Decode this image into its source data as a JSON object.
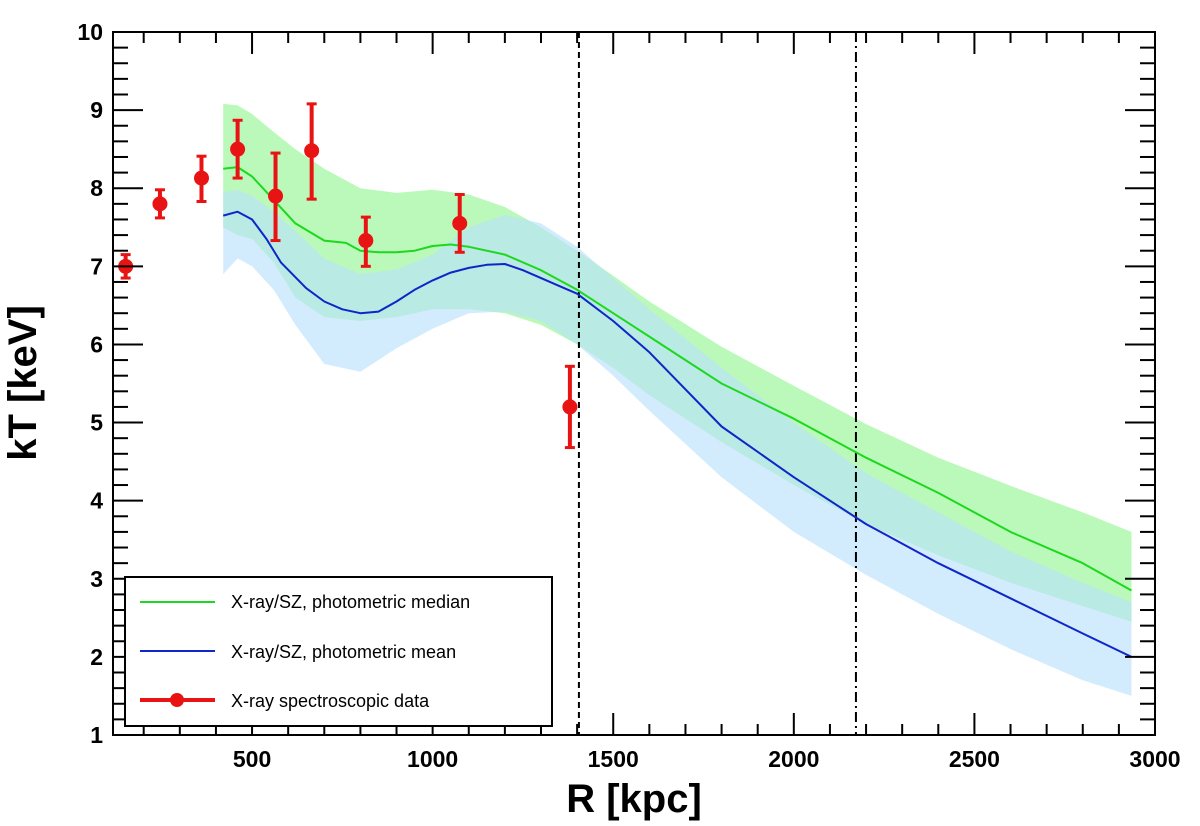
{
  "chart_data": {
    "type": "line",
    "title": "",
    "xlabel": "R [kpc]",
    "ylabel": "kT [keV]",
    "xlim": [
      115,
      3000
    ],
    "ylim": [
      1,
      10
    ],
    "x_ticks": [
      500,
      1000,
      1500,
      2000,
      2500,
      3000
    ],
    "y_ticks": [
      1,
      2,
      3,
      4,
      5,
      6,
      7,
      8,
      9,
      10
    ],
    "x_tick_labels": [
      "500",
      "1000",
      "1500",
      "2000",
      "2500",
      "3000"
    ],
    "y_tick_labels": [
      "1",
      "2",
      "3",
      "4",
      "5",
      "6",
      "7",
      "8",
      "9",
      "10"
    ],
    "vlines": [
      {
        "x": 1405,
        "style": "dashed"
      },
      {
        "x": 2172,
        "style": "dashdot"
      }
    ],
    "bands": [
      {
        "name": "median band",
        "color": "#bbf9bb",
        "x": [
          420,
          460,
          500,
          560,
          620,
          700,
          800,
          900,
          1000,
          1100,
          1200,
          1300,
          1400,
          1500,
          1600,
          1800,
          2000,
          2200,
          2400,
          2600,
          2800,
          2935
        ],
        "upper": [
          9.08,
          9.06,
          8.95,
          8.72,
          8.5,
          8.25,
          8.0,
          7.94,
          7.98,
          7.92,
          7.76,
          7.5,
          7.2,
          6.88,
          6.55,
          5.97,
          5.47,
          4.98,
          4.55,
          4.19,
          3.85,
          3.6
        ],
        "lower": [
          7.5,
          7.4,
          7.35,
          7.05,
          6.6,
          6.35,
          6.3,
          6.35,
          6.45,
          6.45,
          6.4,
          6.25,
          6.0,
          5.7,
          5.35,
          4.75,
          4.2,
          3.7,
          3.3,
          2.95,
          2.65,
          2.45
        ]
      },
      {
        "name": "mean band",
        "color": "#b8e0fb",
        "x": [
          420,
          460,
          500,
          560,
          620,
          700,
          800,
          900,
          1000,
          1100,
          1200,
          1300,
          1400,
          1500,
          1600,
          1800,
          2000,
          2200,
          2400,
          2600,
          2800,
          2935
        ],
        "upper": [
          7.95,
          7.98,
          7.9,
          7.7,
          7.45,
          7.1,
          6.9,
          6.96,
          7.15,
          7.5,
          7.66,
          7.55,
          7.25,
          6.85,
          6.45,
          5.7,
          5.0,
          4.35,
          3.85,
          3.35,
          2.95,
          2.7
        ],
        "lower": [
          6.9,
          7.1,
          7.0,
          6.7,
          6.25,
          5.75,
          5.65,
          5.95,
          6.2,
          6.4,
          6.42,
          6.3,
          6.0,
          5.6,
          5.15,
          4.3,
          3.6,
          3.05,
          2.55,
          2.1,
          1.7,
          1.5
        ]
      }
    ],
    "series": [
      {
        "name": "X-ray/SZ, photometric median",
        "color": "#1ed81e",
        "x": [
          420,
          460,
          500,
          560,
          620,
          700,
          760,
          800,
          850,
          900,
          950,
          1000,
          1050,
          1100,
          1200,
          1300,
          1400,
          1500,
          1600,
          1700,
          1800,
          2000,
          2200,
          2400,
          2600,
          2800,
          2935
        ],
        "y": [
          8.25,
          8.27,
          8.15,
          7.85,
          7.55,
          7.33,
          7.3,
          7.2,
          7.18,
          7.18,
          7.2,
          7.26,
          7.28,
          7.25,
          7.15,
          6.95,
          6.7,
          6.4,
          6.1,
          5.8,
          5.5,
          5.05,
          4.55,
          4.1,
          3.6,
          3.2,
          2.85
        ]
      },
      {
        "name": "X-ray/SZ, photometric mean",
        "color": "#0f26c8",
        "x": [
          420,
          460,
          500,
          540,
          580,
          650,
          700,
          750,
          800,
          850,
          900,
          950,
          1000,
          1050,
          1100,
          1150,
          1200,
          1250,
          1300,
          1350,
          1400,
          1500,
          1600,
          1800,
          2000,
          2200,
          2400,
          2600,
          2800,
          2935
        ],
        "y": [
          7.65,
          7.7,
          7.6,
          7.35,
          7.05,
          6.72,
          6.55,
          6.45,
          6.4,
          6.42,
          6.55,
          6.7,
          6.82,
          6.92,
          6.98,
          7.02,
          7.03,
          6.95,
          6.85,
          6.75,
          6.65,
          6.3,
          5.9,
          4.95,
          4.3,
          3.7,
          3.2,
          2.75,
          2.3,
          2.0
        ]
      }
    ],
    "points": {
      "name": "X-ray spectroscopic data",
      "color": "#e81414",
      "x": [
        150,
        245,
        360,
        460,
        565,
        665,
        815,
        1075,
        1380
      ],
      "y": [
        7.0,
        7.8,
        8.13,
        8.5,
        7.9,
        8.48,
        7.33,
        7.55,
        5.2
      ],
      "yerr_low": [
        0.15,
        0.18,
        0.3,
        0.37,
        0.57,
        0.62,
        0.33,
        0.37,
        0.52
      ],
      "yerr_high": [
        0.15,
        0.18,
        0.28,
        0.37,
        0.55,
        0.6,
        0.3,
        0.37,
        0.52
      ]
    },
    "legend": {
      "position": "bottom-left",
      "entries": [
        {
          "label": "X-ray/SZ, photometric median",
          "kind": "line",
          "color": "#1ed81e"
        },
        {
          "label": "X-ray/SZ, photometric mean",
          "kind": "line",
          "color": "#0f26c8"
        },
        {
          "label": "X-ray spectroscopic data",
          "kind": "marker",
          "color": "#e81414"
        }
      ]
    }
  }
}
